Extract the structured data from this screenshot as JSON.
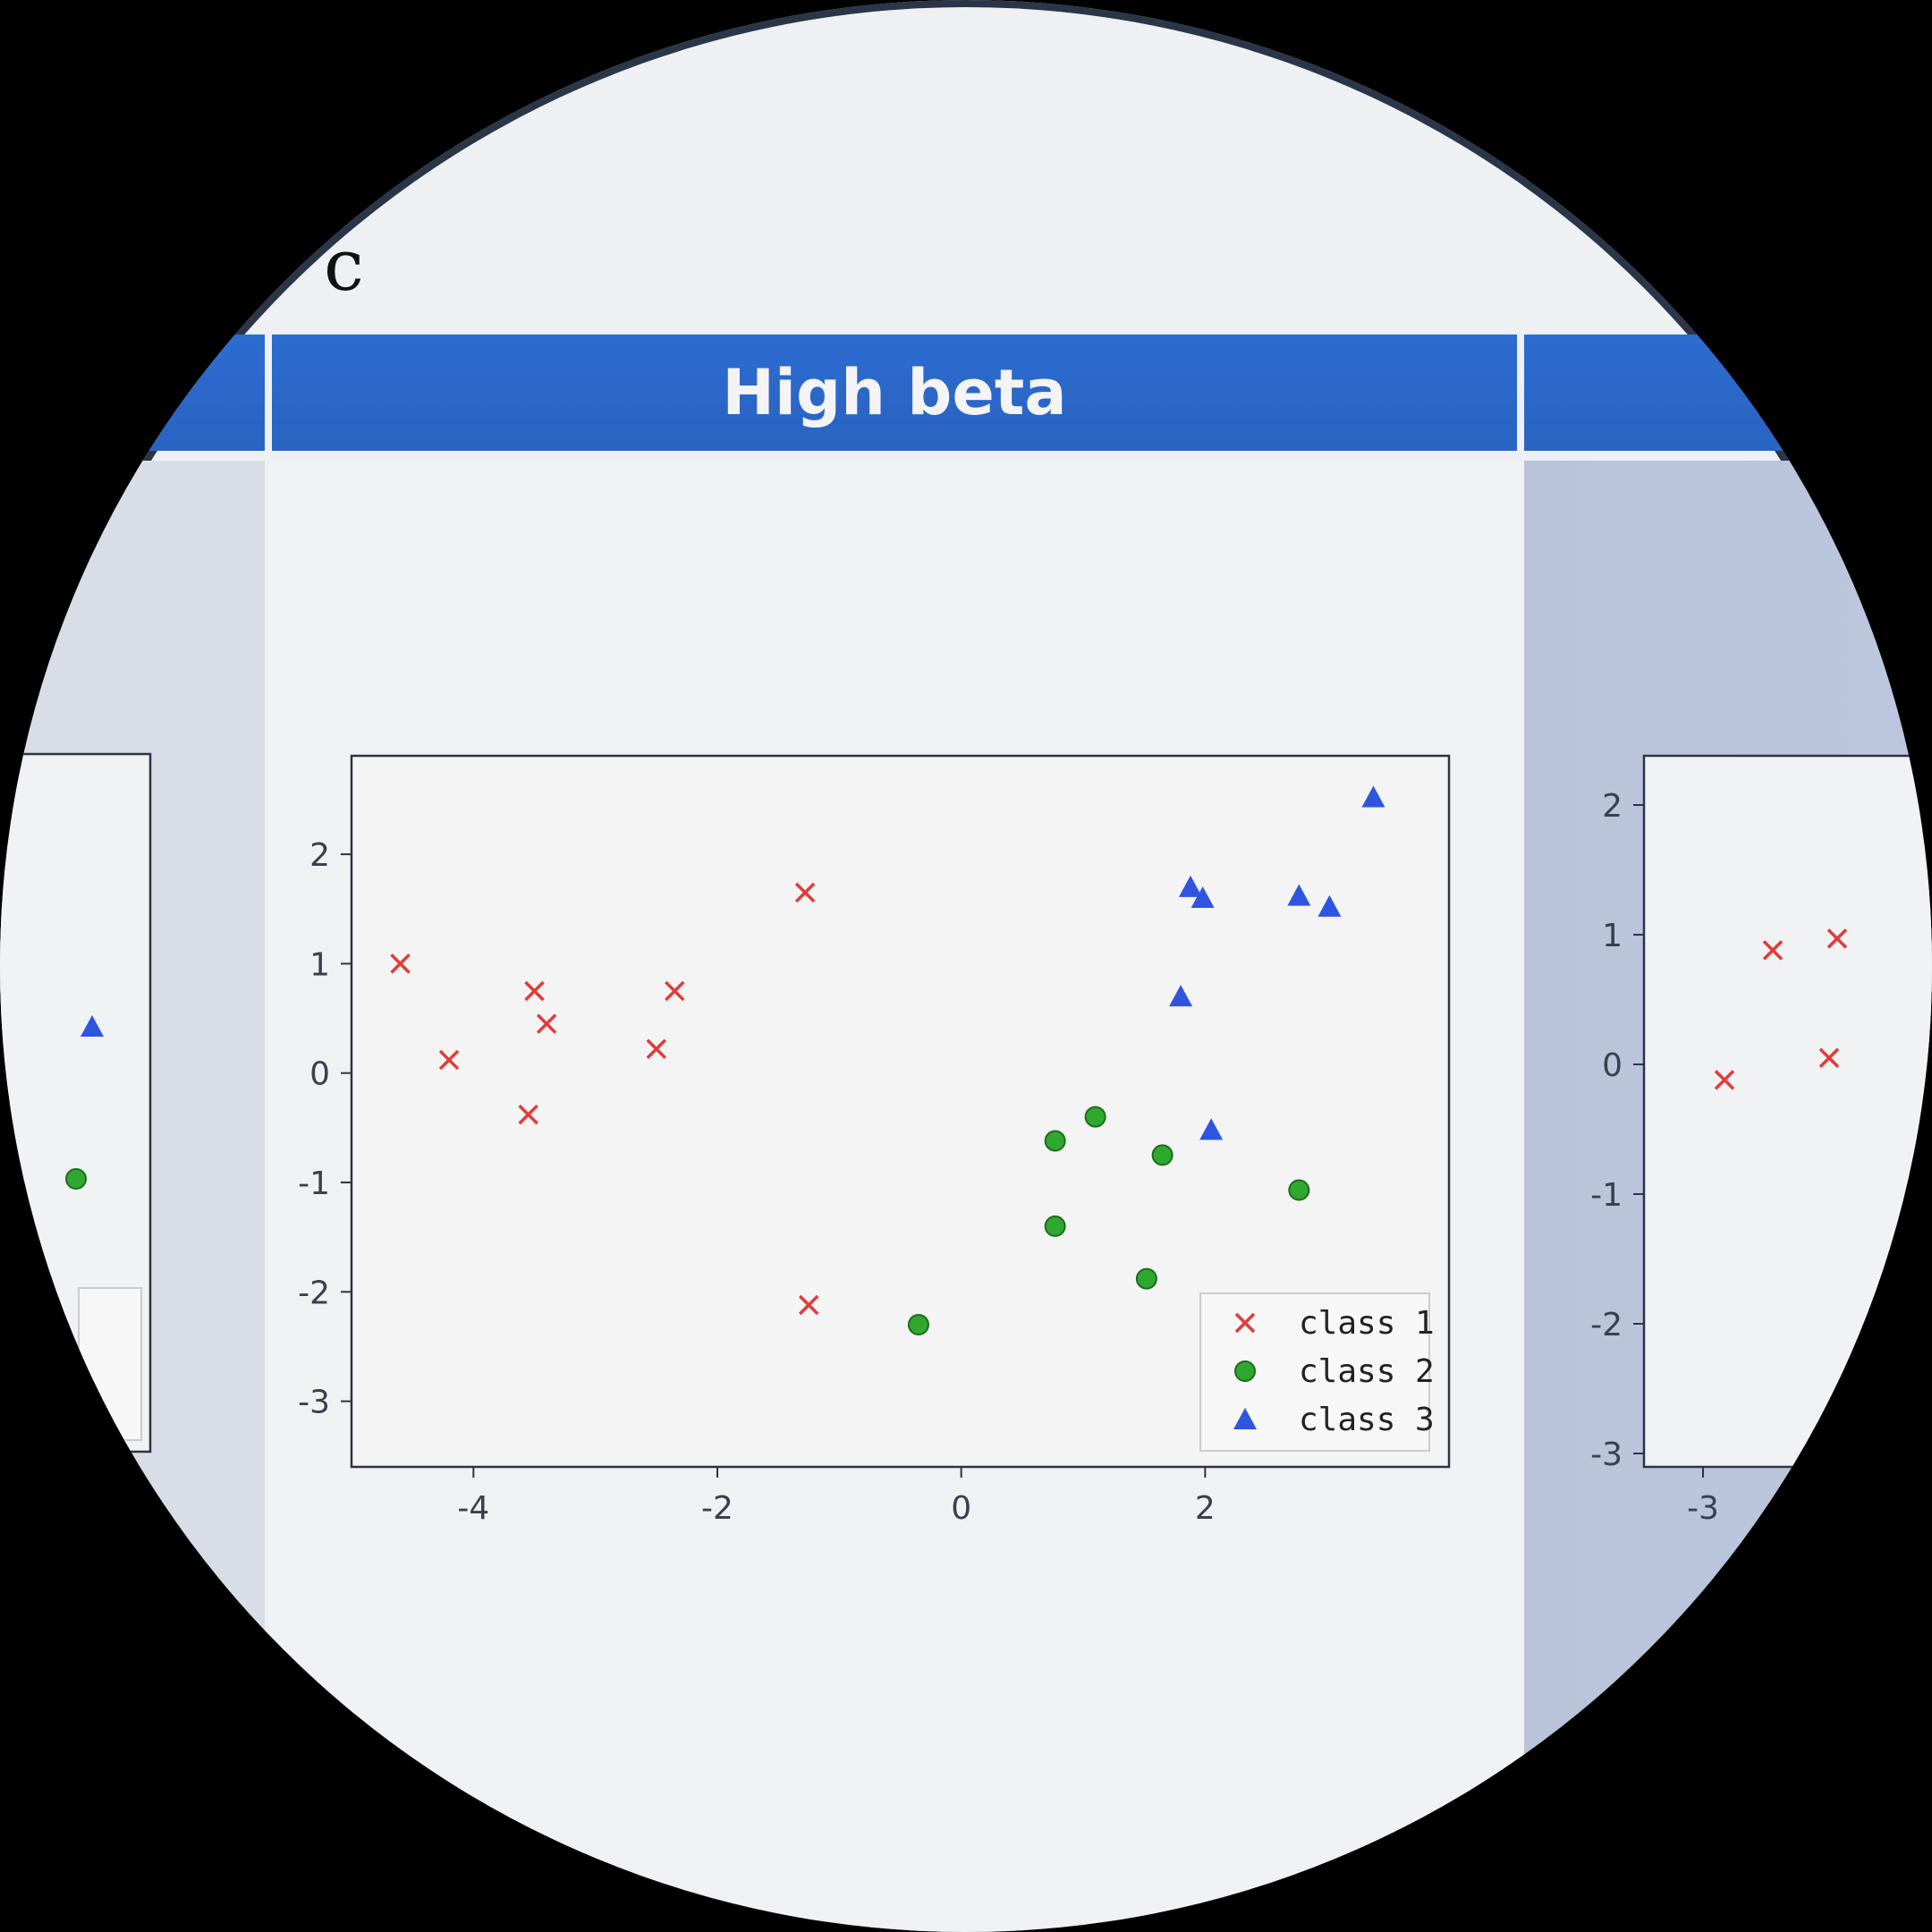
{
  "corner_glyph": "c",
  "chart_data": [
    {
      "type": "scatter",
      "title": "High beta",
      "xlabel": "",
      "ylabel": "",
      "xlim": [
        -5.0,
        4.0
      ],
      "ylim": [
        -3.6,
        2.9
      ],
      "xticks": [
        -4,
        -2,
        0,
        2
      ],
      "xtick_labels": [
        "-4",
        "-2",
        "0",
        "2"
      ],
      "yticks": [
        2,
        1,
        0,
        -1,
        -2,
        -3
      ],
      "ytick_labels": [
        "2",
        "1",
        "0",
        "-1",
        "-2",
        "-3"
      ],
      "grid": false,
      "legend_position": "lower right",
      "series": [
        {
          "name": "class 1",
          "marker": "x",
          "color": "#e23b3b",
          "points": [
            [
              -4.6,
              1.0
            ],
            [
              -4.2,
              0.12
            ],
            [
              -3.5,
              0.75
            ],
            [
              -3.4,
              0.45
            ],
            [
              -3.55,
              -0.38
            ],
            [
              -2.5,
              0.22
            ],
            [
              -2.35,
              0.75
            ],
            [
              -1.28,
              1.65
            ],
            [
              -1.25,
              -2.12
            ]
          ]
        },
        {
          "name": "class 2",
          "marker": "o",
          "color": "#2fa82f",
          "points": [
            [
              -0.35,
              -2.3
            ],
            [
              0.77,
              -0.62
            ],
            [
              0.77,
              -1.4
            ],
            [
              1.1,
              -0.4
            ],
            [
              1.65,
              -0.75
            ],
            [
              1.52,
              -1.88
            ],
            [
              2.77,
              -1.07
            ]
          ]
        },
        {
          "name": "class 3",
          "marker": "^",
          "color": "#2f55e0",
          "points": [
            [
              3.38,
              2.52
            ],
            [
              1.88,
              1.7
            ],
            [
              1.98,
              1.6
            ],
            [
              2.77,
              1.62
            ],
            [
              3.02,
              1.52
            ],
            [
              1.8,
              0.7
            ],
            [
              2.05,
              -0.52
            ]
          ]
        }
      ]
    },
    {
      "type": "scatter",
      "title": "",
      "legend_position": "lower right",
      "partial": "left edge of adjacent panel, mostly cut off",
      "series": [
        {
          "name": "",
          "marker": "^",
          "color": "#2f55e0",
          "points": [
            [
              0,
              0.45
            ]
          ]
        },
        {
          "name": "",
          "marker": "o",
          "color": "#2fa82f",
          "points": [
            [
              0,
              -0.9
            ]
          ]
        }
      ]
    },
    {
      "type": "scatter",
      "title": "",
      "xtick_labels": [
        "-3"
      ],
      "ytick_labels": [
        "2",
        "1",
        "0",
        "-1",
        "-2",
        "-3"
      ],
      "partial": "right edge of adjacent panel, mostly cut off",
      "series": [
        {
          "name": "",
          "marker": "x",
          "color": "#e23b3b",
          "points": [
            [
              -2.9,
              -0.12
            ],
            [
              -2.6,
              0.88
            ],
            [
              -2.2,
              0.97
            ],
            [
              -2.25,
              0.05
            ]
          ]
        }
      ]
    }
  ]
}
